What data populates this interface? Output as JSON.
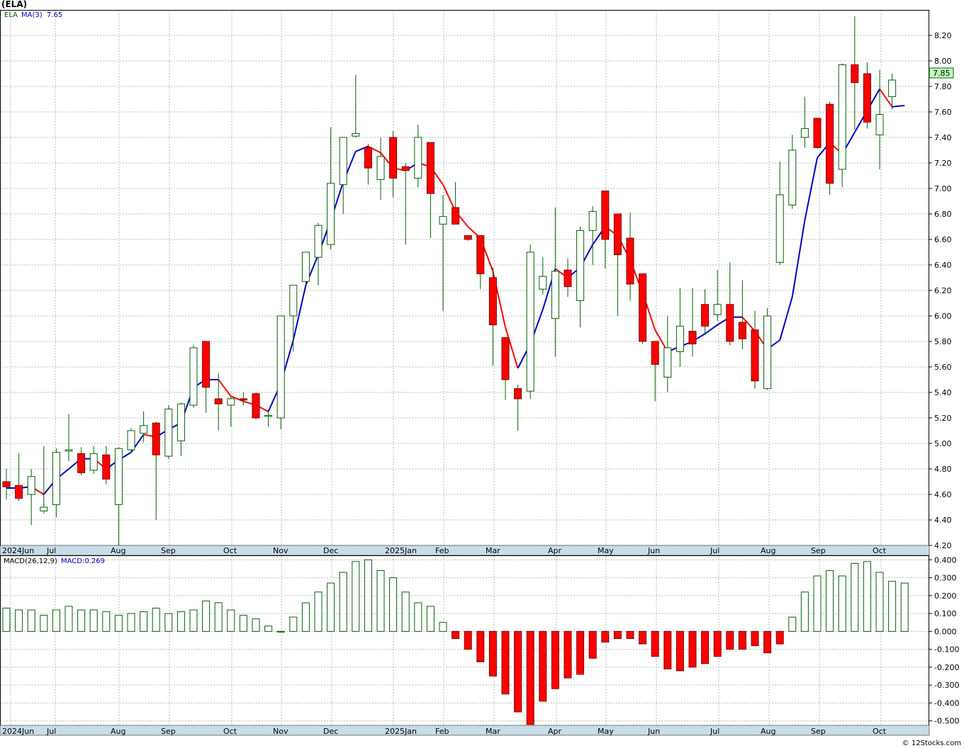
{
  "header": {
    "symbol": "(ELA)"
  },
  "price_legend": {
    "symbol": "ELA",
    "ma_label": "MA(3)",
    "ma_value": "7.65"
  },
  "macd_legend": {
    "params": "MACD(26,12,9)",
    "value_label": "MACD:0.269"
  },
  "last_price_tag": "7.85",
  "footer": "© 12Stocks.com",
  "colors": {
    "up": "#006400",
    "down": "#ff0000",
    "ma_up": "#0000cc",
    "ma_down": "#ff0000",
    "grid": "#bbbbbb",
    "axis_band": "#c8dde8",
    "tag_bg": "#c0ffc0"
  },
  "x_axis_labels": [
    "2024Jun",
    "Jul",
    "Aug",
    "Sep",
    "Oct",
    "Nov",
    "Dec",
    "2025Jan",
    "Feb",
    "Mar",
    "Apr",
    "May",
    "Jun",
    "Jul",
    "Aug",
    "Sep",
    "Oct"
  ],
  "chart_data": [
    {
      "type": "candlestick",
      "title": "(ELA)",
      "ylim": [
        4.2,
        8.4
      ],
      "y_ticks": [
        "4.20",
        "4.40",
        "4.60",
        "4.80",
        "5.00",
        "5.20",
        "5.40",
        "5.60",
        "5.80",
        "6.00",
        "6.20",
        "6.40",
        "6.60",
        "6.80",
        "7.00",
        "7.20",
        "7.40",
        "7.60",
        "7.80",
        "8.00",
        "8.20"
      ],
      "candles": [
        {
          "o": 4.7,
          "h": 4.8,
          "l": 4.56,
          "c": 4.66
        },
        {
          "o": 4.67,
          "h": 4.92,
          "l": 4.55,
          "c": 4.57
        },
        {
          "o": 4.6,
          "h": 4.8,
          "l": 4.36,
          "c": 4.74
        },
        {
          "o": 4.47,
          "h": 4.98,
          "l": 4.45,
          "c": 4.5
        },
        {
          "o": 4.52,
          "h": 4.96,
          "l": 4.42,
          "c": 4.93
        },
        {
          "o": 4.94,
          "h": 5.23,
          "l": 4.86,
          "c": 4.95
        },
        {
          "o": 4.92,
          "h": 4.97,
          "l": 4.75,
          "c": 4.77
        },
        {
          "o": 4.79,
          "h": 4.98,
          "l": 4.76,
          "c": 4.92
        },
        {
          "o": 4.91,
          "h": 4.98,
          "l": 4.68,
          "c": 4.72
        },
        {
          "o": 4.52,
          "h": 4.97,
          "l": 4.2,
          "c": 4.96
        },
        {
          "o": 4.95,
          "h": 5.12,
          "l": 4.93,
          "c": 5.1
        },
        {
          "o": 5.08,
          "h": 5.25,
          "l": 5.01,
          "c": 5.14
        },
        {
          "o": 5.16,
          "h": 5.17,
          "l": 4.4,
          "c": 4.91
        },
        {
          "o": 4.9,
          "h": 5.3,
          "l": 4.88,
          "c": 5.27
        },
        {
          "o": 5.02,
          "h": 5.32,
          "l": 4.9,
          "c": 5.31
        },
        {
          "o": 5.3,
          "h": 5.77,
          "l": 5.28,
          "c": 5.75
        },
        {
          "o": 5.8,
          "h": 5.8,
          "l": 5.24,
          "c": 5.44
        },
        {
          "o": 5.35,
          "h": 5.55,
          "l": 5.1,
          "c": 5.31
        },
        {
          "o": 5.3,
          "h": 5.37,
          "l": 5.13,
          "c": 5.35
        },
        {
          "o": 5.35,
          "h": 5.4,
          "l": 5.3,
          "c": 5.34
        },
        {
          "o": 5.39,
          "h": 5.4,
          "l": 5.19,
          "c": 5.2
        },
        {
          "o": 5.22,
          "h": 5.25,
          "l": 5.13,
          "c": 5.22
        },
        {
          "o": 5.2,
          "h": 6.0,
          "l": 5.11,
          "c": 6.0
        },
        {
          "o": 6.0,
          "h": 6.24,
          "l": 5.72,
          "c": 6.24
        },
        {
          "o": 6.27,
          "h": 6.5,
          "l": 6.24,
          "c": 6.5
        },
        {
          "o": 6.46,
          "h": 6.73,
          "l": 6.24,
          "c": 6.71
        },
        {
          "o": 6.56,
          "h": 7.48,
          "l": 6.52,
          "c": 7.04
        },
        {
          "o": 7.03,
          "h": 7.4,
          "l": 6.8,
          "c": 7.4
        },
        {
          "o": 7.41,
          "h": 7.89,
          "l": 7.4,
          "c": 7.43
        },
        {
          "o": 7.32,
          "h": 7.35,
          "l": 7.03,
          "c": 7.16
        },
        {
          "o": 7.07,
          "h": 7.4,
          "l": 6.91,
          "c": 7.25
        },
        {
          "o": 7.4,
          "h": 7.45,
          "l": 6.93,
          "c": 7.08
        },
        {
          "o": 7.17,
          "h": 7.2,
          "l": 6.56,
          "c": 7.14
        },
        {
          "o": 7.08,
          "h": 7.5,
          "l": 7.01,
          "c": 7.4
        },
        {
          "o": 7.36,
          "h": 7.36,
          "l": 6.61,
          "c": 6.96
        },
        {
          "o": 6.72,
          "h": 6.95,
          "l": 6.04,
          "c": 6.78
        },
        {
          "o": 6.85,
          "h": 7.05,
          "l": 6.72,
          "c": 6.72
        },
        {
          "o": 6.63,
          "h": 6.63,
          "l": 6.59,
          "c": 6.6
        },
        {
          "o": 6.63,
          "h": 6.63,
          "l": 6.21,
          "c": 6.33
        },
        {
          "o": 6.3,
          "h": 6.38,
          "l": 5.61,
          "c": 5.93
        },
        {
          "o": 5.83,
          "h": 5.83,
          "l": 5.34,
          "c": 5.5
        },
        {
          "o": 5.43,
          "h": 5.46,
          "l": 5.1,
          "c": 5.35
        },
        {
          "o": 5.41,
          "h": 6.56,
          "l": 5.35,
          "c": 6.5
        },
        {
          "o": 6.21,
          "h": 6.46,
          "l": 6.17,
          "c": 6.31
        },
        {
          "o": 5.98,
          "h": 6.85,
          "l": 5.68,
          "c": 6.35
        },
        {
          "o": 6.36,
          "h": 6.45,
          "l": 6.15,
          "c": 6.23
        },
        {
          "o": 6.12,
          "h": 6.7,
          "l": 5.91,
          "c": 6.67
        },
        {
          "o": 6.67,
          "h": 6.86,
          "l": 6.4,
          "c": 6.82
        },
        {
          "o": 6.98,
          "h": 6.98,
          "l": 6.37,
          "c": 6.6
        },
        {
          "o": 6.8,
          "h": 6.8,
          "l": 6.0,
          "c": 6.48
        },
        {
          "o": 6.61,
          "h": 6.81,
          "l": 6.12,
          "c": 6.25
        },
        {
          "o": 6.33,
          "h": 6.33,
          "l": 5.78,
          "c": 5.8
        },
        {
          "o": 5.8,
          "h": 5.8,
          "l": 5.33,
          "c": 5.62
        },
        {
          "o": 5.52,
          "h": 6.0,
          "l": 5.4,
          "c": 5.75
        },
        {
          "o": 5.72,
          "h": 6.22,
          "l": 5.6,
          "c": 5.92
        },
        {
          "o": 5.88,
          "h": 6.22,
          "l": 5.68,
          "c": 5.78
        },
        {
          "o": 6.09,
          "h": 6.21,
          "l": 5.85,
          "c": 5.92
        },
        {
          "o": 6.01,
          "h": 6.36,
          "l": 5.96,
          "c": 6.09
        },
        {
          "o": 6.09,
          "h": 6.42,
          "l": 5.77,
          "c": 5.8
        },
        {
          "o": 5.95,
          "h": 6.28,
          "l": 5.74,
          "c": 5.82
        },
        {
          "o": 5.89,
          "h": 6.04,
          "l": 5.43,
          "c": 5.49
        },
        {
          "o": 5.43,
          "h": 6.06,
          "l": 5.42,
          "c": 6.0
        },
        {
          "o": 6.42,
          "h": 7.21,
          "l": 6.4,
          "c": 6.95
        },
        {
          "o": 6.87,
          "h": 7.42,
          "l": 6.84,
          "c": 7.3
        },
        {
          "o": 7.4,
          "h": 7.72,
          "l": 7.32,
          "c": 7.47
        },
        {
          "o": 7.55,
          "h": 7.55,
          "l": 7.31,
          "c": 7.32
        },
        {
          "o": 7.66,
          "h": 7.68,
          "l": 6.95,
          "c": 7.04
        },
        {
          "o": 7.15,
          "h": 7.98,
          "l": 7.01,
          "c": 7.97
        },
        {
          "o": 7.97,
          "h": 8.35,
          "l": 7.46,
          "c": 7.83
        },
        {
          "o": 7.9,
          "h": 7.99,
          "l": 7.47,
          "c": 7.52
        },
        {
          "o": 7.42,
          "h": 7.93,
          "l": 7.15,
          "c": 7.58
        },
        {
          "o": 7.72,
          "h": 7.9,
          "l": 7.62,
          "c": 7.85
        }
      ],
      "ma3": [
        4.65,
        4.65,
        4.66,
        4.6,
        4.72,
        4.8,
        4.88,
        4.88,
        4.8,
        4.87,
        4.93,
        5.07,
        5.05,
        5.11,
        5.16,
        5.44,
        5.5,
        5.5,
        5.37,
        5.33,
        5.3,
        5.25,
        5.47,
        5.81,
        6.24,
        6.48,
        6.75,
        7.05,
        7.29,
        7.33,
        7.28,
        7.16,
        7.14,
        7.2,
        7.17,
        7.03,
        6.82,
        6.7,
        6.61,
        6.35,
        5.91,
        5.59,
        5.78,
        6.05,
        6.37,
        6.3,
        6.38,
        6.56,
        6.7,
        6.63,
        6.44,
        6.18,
        5.89,
        5.72,
        5.76,
        5.8,
        5.86,
        5.93,
        5.99,
        5.99,
        5.88,
        5.74,
        5.81,
        6.15,
        6.75,
        7.24,
        7.36,
        7.27,
        7.44,
        7.61,
        7.78,
        7.64,
        7.65
      ]
    },
    {
      "type": "bar",
      "title": "MACD(26,12,9)",
      "ylim": [
        -0.525,
        0.425
      ],
      "y_ticks": [
        "0.400",
        "0.300",
        "0.200",
        "0.100",
        "0.000",
        "-0.100",
        "-0.200",
        "-0.300",
        "-0.400",
        "-0.500"
      ],
      "values": [
        0.13,
        0.12,
        0.12,
        0.09,
        0.12,
        0.14,
        0.12,
        0.12,
        0.11,
        0.09,
        0.1,
        0.11,
        0.13,
        0.1,
        0.11,
        0.12,
        0.17,
        0.16,
        0.12,
        0.09,
        0.07,
        0.03,
        0.0,
        0.08,
        0.16,
        0.22,
        0.27,
        0.33,
        0.39,
        0.4,
        0.34,
        0.3,
        0.22,
        0.16,
        0.14,
        0.05,
        -0.04,
        -0.1,
        -0.17,
        -0.25,
        -0.35,
        -0.45,
        -0.52,
        -0.39,
        -0.32,
        -0.26,
        -0.24,
        -0.15,
        -0.06,
        -0.04,
        -0.04,
        -0.07,
        -0.14,
        -0.21,
        -0.22,
        -0.2,
        -0.18,
        -0.14,
        -0.1,
        -0.1,
        -0.08,
        -0.12,
        -0.07,
        0.08,
        0.22,
        0.31,
        0.34,
        0.31,
        0.38,
        0.39,
        0.33,
        0.28,
        0.27
      ]
    }
  ]
}
